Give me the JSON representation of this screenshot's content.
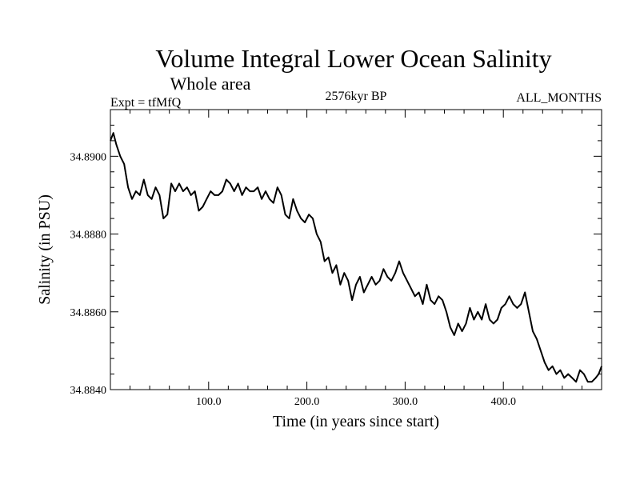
{
  "chart_data": {
    "type": "line",
    "title": "Volume Integral Lower Ocean Salinity",
    "subtitle": "Whole area",
    "left_label": "Expt = tfMfQ",
    "center_label": "2576kyr BP",
    "right_label": "ALL_MONTHS",
    "xlabel": "Time (in years since start)",
    "ylabel": "Salinity (in PSU)",
    "xlim": [
      0,
      500
    ],
    "ylim": [
      34.884,
      34.8912
    ],
    "x_ticks": [
      100,
      200,
      300,
      400
    ],
    "x_tick_labels": [
      "100.0",
      "200.0",
      "300.0",
      "400.0"
    ],
    "y_ticks": [
      34.884,
      34.886,
      34.888,
      34.89
    ],
    "y_tick_labels": [
      "34.8840",
      "34.8860",
      "34.8880",
      "34.8900"
    ],
    "grid": false,
    "series": [
      {
        "name": "Salinity",
        "x": [
          0,
          3,
          6,
          10,
          14,
          18,
          22,
          26,
          30,
          34,
          38,
          42,
          46,
          50,
          54,
          58,
          62,
          66,
          70,
          74,
          78,
          82,
          86,
          90,
          94,
          98,
          102,
          106,
          110,
          114,
          118,
          122,
          126,
          130,
          134,
          138,
          142,
          146,
          150,
          154,
          158,
          162,
          166,
          170,
          174,
          178,
          182,
          186,
          190,
          194,
          198,
          202,
          206,
          210,
          214,
          218,
          222,
          226,
          230,
          234,
          238,
          242,
          246,
          250,
          254,
          258,
          262,
          266,
          270,
          274,
          278,
          282,
          286,
          290,
          294,
          298,
          302,
          306,
          310,
          314,
          318,
          322,
          326,
          330,
          334,
          338,
          342,
          346,
          350,
          354,
          358,
          362,
          366,
          370,
          374,
          378,
          382,
          386,
          390,
          394,
          398,
          402,
          406,
          410,
          414,
          418,
          422,
          426,
          430,
          434,
          438,
          442,
          446,
          450,
          454,
          458,
          462,
          466,
          470,
          474,
          478,
          482,
          486,
          490,
          494,
          497,
          500
        ],
        "values": [
          34.8904,
          34.8906,
          34.8903,
          34.89,
          34.8898,
          34.8892,
          34.8889,
          34.8891,
          34.889,
          34.8894,
          34.889,
          34.8889,
          34.8892,
          34.889,
          34.8884,
          34.8885,
          34.8893,
          34.8891,
          34.8893,
          34.8891,
          34.8892,
          34.889,
          34.8891,
          34.8886,
          34.8887,
          34.8889,
          34.8891,
          34.889,
          34.889,
          34.8891,
          34.8894,
          34.8893,
          34.8891,
          34.8893,
          34.889,
          34.8892,
          34.8891,
          34.8891,
          34.8892,
          34.8889,
          34.8891,
          34.8889,
          34.8888,
          34.8892,
          34.889,
          34.8885,
          34.8884,
          34.8889,
          34.8886,
          34.8884,
          34.8883,
          34.8885,
          34.8884,
          34.888,
          34.8878,
          34.8873,
          34.8874,
          34.887,
          34.8872,
          34.8867,
          34.887,
          34.8868,
          34.8863,
          34.8867,
          34.8869,
          34.8865,
          34.8867,
          34.8869,
          34.8867,
          34.8868,
          34.8871,
          34.8869,
          34.8868,
          34.887,
          34.8873,
          34.887,
          34.8868,
          34.8866,
          34.8864,
          34.8865,
          34.8862,
          34.8867,
          34.8863,
          34.8862,
          34.8864,
          34.8863,
          34.886,
          34.8856,
          34.8854,
          34.8857,
          34.8855,
          34.8857,
          34.8861,
          34.8858,
          34.886,
          34.8858,
          34.8862,
          34.8858,
          34.8857,
          34.8858,
          34.8861,
          34.8862,
          34.8864,
          34.8862,
          34.8861,
          34.8862,
          34.8865,
          34.886,
          34.8855,
          34.8853,
          34.885,
          34.8847,
          34.8845,
          34.8846,
          34.8844,
          34.8845,
          34.8843,
          34.8844,
          34.8843,
          34.8842,
          34.8845,
          34.8844,
          34.8842,
          34.8842,
          34.8843,
          34.8844,
          34.8846
        ]
      }
    ]
  }
}
